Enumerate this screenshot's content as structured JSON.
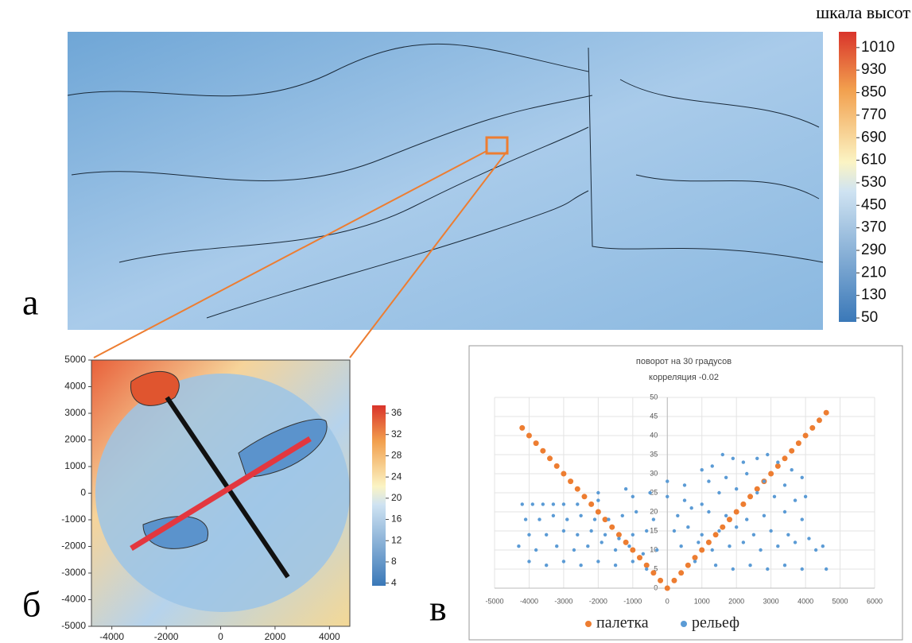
{
  "panel_labels": {
    "a": "а",
    "b": "б",
    "c": "в"
  },
  "map_a": {
    "colorbar_title": "шкала высот",
    "colorbar_ticks": [
      1010,
      930,
      850,
      770,
      690,
      610,
      530,
      450,
      370,
      290,
      210,
      130,
      50
    ],
    "colorbar_lim": [
      36,
      1066
    ]
  },
  "map_b": {
    "xlim": [
      -4750,
      4750
    ],
    "ylim": [
      -5000,
      5000
    ],
    "xticks": [
      -4000,
      -2000,
      0,
      2000,
      4000
    ],
    "yticks": [
      5000,
      4000,
      3000,
      2000,
      1000,
      0,
      -1000,
      -2000,
      -3000,
      -4000,
      -5000
    ],
    "colorbar_ticks": [
      36,
      32,
      28,
      24,
      20,
      16,
      12,
      8,
      4
    ],
    "colorbar_lim": [
      3.5,
      37.5
    ]
  },
  "chart_data": {
    "type": "scatter",
    "title": "поворот на 30 градусов",
    "subtitle": "корреляция -0.02",
    "xlim": [
      -5000,
      6000
    ],
    "ylim": [
      0,
      50
    ],
    "xticks": [
      -5000,
      -4000,
      -3000,
      -2000,
      -1000,
      0,
      1000,
      2000,
      3000,
      4000,
      5000,
      6000
    ],
    "yticks": [
      0,
      5,
      10,
      15,
      20,
      25,
      30,
      35,
      40,
      45,
      50
    ],
    "grid": true,
    "series": [
      {
        "name": "палетка",
        "color": "#ed7d31",
        "x": [
          -4200,
          -4000,
          -3800,
          -3600,
          -3400,
          -3200,
          -3000,
          -2800,
          -2600,
          -2400,
          -2200,
          -2000,
          -1800,
          -1600,
          -1400,
          -1200,
          -1000,
          -800,
          -600,
          -400,
          -200,
          0,
          200,
          400,
          600,
          800,
          1000,
          1200,
          1400,
          1600,
          1800,
          2000,
          2200,
          2400,
          2600,
          2800,
          3000,
          3200,
          3400,
          3600,
          3800,
          4000,
          4200,
          4400,
          4600
        ],
        "values": [
          42,
          40,
          38,
          36,
          34,
          32,
          30,
          28,
          26,
          24,
          22,
          20,
          18,
          16,
          14,
          12,
          10,
          8,
          6,
          4,
          2,
          0,
          2,
          4,
          6,
          8,
          10,
          12,
          14,
          16,
          18,
          20,
          22,
          24,
          26,
          28,
          30,
          32,
          34,
          36,
          38,
          40,
          42,
          44,
          46
        ]
      },
      {
        "name": "рельеф",
        "color": "#5b9bd5",
        "x": [
          -4200,
          -3900,
          -3600,
          -3300,
          -3000,
          -2600,
          -2000,
          -1000,
          -500,
          0,
          500,
          1000,
          4000,
          -4100,
          -3700,
          -3300,
          -2900,
          -2500,
          -2100,
          -1700,
          -1300,
          -900,
          -400,
          300,
          700,
          1200,
          1700,
          2300,
          2800,
          3400,
          3900,
          -4000,
          -3500,
          -3000,
          -2600,
          -2200,
          -1800,
          -1400,
          -1000,
          -600,
          200,
          600,
          1000,
          1500,
          2000,
          2500,
          3000,
          3500,
          4100,
          4500,
          -4300,
          -3800,
          -3200,
          -2700,
          -2300,
          -1900,
          -1500,
          -1100,
          -700,
          -300,
          400,
          900,
          1300,
          1800,
          2200,
          2700,
          3200,
          3700,
          4300,
          -4000,
          -3500,
          -3000,
          -2500,
          -2000,
          -1500,
          -1000,
          -600,
          800,
          1400,
          1900,
          2400,
          2900,
          3400,
          3900,
          4600,
          1000,
          1300,
          1600,
          1900,
          2200,
          2600,
          2900,
          3200,
          3600,
          3900,
          1200,
          1700,
          2300,
          2800,
          3400,
          1500,
          2000,
          2600,
          3100,
          3700,
          -2000,
          0,
          500,
          -1200
        ],
        "values": [
          22,
          22,
          22,
          22,
          22,
          22,
          23,
          24,
          25,
          24,
          23,
          22,
          24,
          18,
          18,
          19,
          18,
          19,
          18,
          18,
          19,
          20,
          18,
          19,
          21,
          20,
          19,
          18,
          19,
          20,
          18,
          14,
          14,
          15,
          14,
          15,
          14,
          13,
          14,
          15,
          15,
          16,
          14,
          15,
          16,
          14,
          15,
          14,
          13,
          11,
          11,
          10,
          11,
          10,
          11,
          12,
          10,
          11,
          9,
          10,
          11,
          12,
          10,
          11,
          12,
          10,
          11,
          12,
          10,
          7,
          6,
          7,
          6,
          7,
          6,
          7,
          5,
          7,
          6,
          5,
          6,
          5,
          6,
          5,
          5,
          31,
          32,
          35,
          34,
          33,
          34,
          35,
          33,
          31,
          29,
          28,
          29,
          30,
          28,
          27,
          25,
          26,
          25,
          24,
          23,
          25,
          28,
          27,
          26
        ]
      }
    ]
  }
}
